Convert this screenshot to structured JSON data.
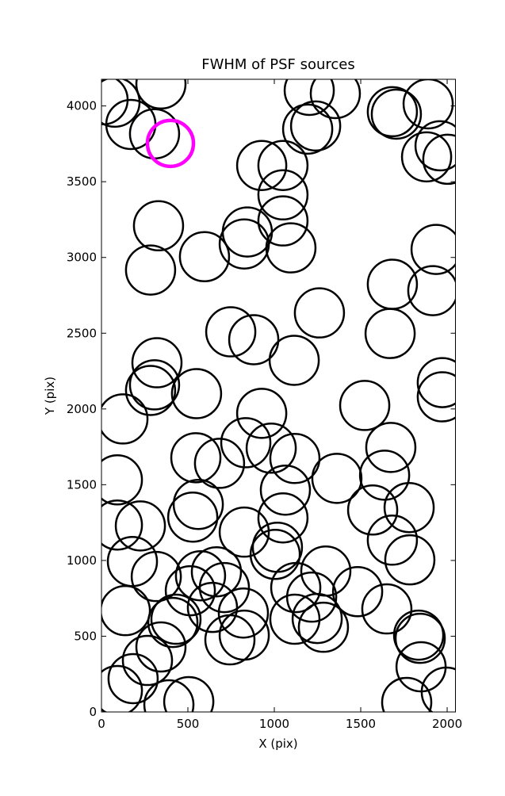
{
  "chart_data": {
    "type": "scatter",
    "title": "FWHM of PSF sources",
    "x_label": "X (pix)",
    "y_label": "Y (pix)",
    "xlim": [
      0,
      2048
    ],
    "ylim": [
      0,
      4176
    ],
    "xticks": [
      0,
      500,
      1000,
      1500,
      2000
    ],
    "yticks": [
      0,
      500,
      1000,
      1500,
      2000,
      2500,
      3000,
      3500,
      4000
    ],
    "grid": false,
    "series": [
      {
        "color": "#000000",
        "x": [
          9,
          78,
          170,
          307,
          344,
          927,
          1050,
          1050,
          1050,
          1096,
          844,
          826,
          596,
          330,
          284,
          1202,
          1353,
          1193,
          1239,
          1683,
          1706,
          1890,
          1959,
          2004,
          1881,
          1936,
          1683,
          1917,
          1261,
          1670,
          748,
          881,
          1115,
          321,
          307,
          284,
          550,
          124,
          1523,
          1972,
          1972,
          927,
          835,
          982,
          1119,
          546,
          683,
          1674,
          1638,
          92,
          1362,
          560,
          1064,
          528,
          826,
          1569,
          92,
          225,
          1780,
          1050,
          1683,
          1018,
          1005,
          179,
          1784,
          317,
          573,
          665,
          1298,
          1482,
          1124,
          711,
          514,
          1216,
          1651,
          138,
          642,
          821,
          431,
          413,
          1248,
          1119,
          1284,
          743,
          826,
          1835,
          1844,
          344,
          266,
          1849,
          183,
          92,
          505,
          390,
          1766,
          1995
        ],
        "values": [
          4041,
          4025,
          3878,
          3816,
          4145,
          3607,
          3607,
          3413,
          3241,
          3063,
          3168,
          3089,
          3005,
          3209,
          2917,
          4103,
          4082,
          3847,
          3868,
          3962,
          3946,
          4014,
          3737,
          3648,
          3664,
          3053,
          2823,
          2781,
          2634,
          2498,
          2509,
          2457,
          2321,
          2305,
          2159,
          2122,
          2101,
          1934,
          2023,
          2174,
          2080,
          1971,
          1777,
          1741,
          1673,
          1678,
          1641,
          1746,
          1563,
          1532,
          1542,
          1370,
          1464,
          1286,
          1187,
          1333,
          1234,
          1228,
          1349,
          1281,
          1134,
          1087,
          1040,
          993,
          1004,
          894,
          899,
          925,
          930,
          794,
          821,
          821,
          800,
          758,
          680,
          669,
          690,
          653,
          612,
          591,
          617,
          612,
          559,
          476,
          507,
          507,
          486,
          429,
          340,
          298,
          220,
          141,
          68,
          47,
          63,
          131
        ]
      },
      {
        "color": "#ff00ff",
        "x": [
          399
        ],
        "values": [
          3753
        ]
      }
    ]
  }
}
